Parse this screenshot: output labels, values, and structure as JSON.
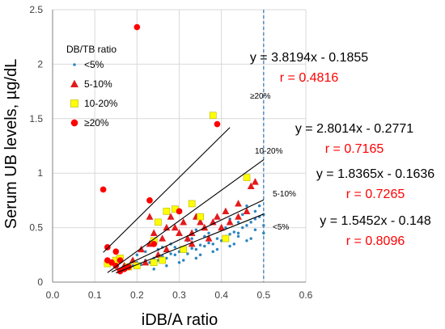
{
  "chart_data": {
    "type": "scatter",
    "xlabel": "iDB/A ratio",
    "ylabel": "Serum UB levels, µg/dL",
    "xlim": [
      0,
      0.6
    ],
    "ylim": [
      0,
      2.5
    ],
    "x_ticks": [
      "0.0",
      "0.1",
      "0.2",
      "0.3",
      "0.4",
      "0.5",
      "0.6"
    ],
    "y_ticks": [
      "0",
      "0.5",
      "1",
      "1.5",
      "2",
      "2.5"
    ],
    "reference_line": {
      "x": 0.5,
      "style": "dashed",
      "color": "#2e75b6"
    },
    "legend": {
      "title": "DB/TB ratio",
      "placement": "top-left"
    },
    "series": [
      {
        "name": "<5%",
        "marker": "dot",
        "color": "#2e86c1",
        "fit": {
          "equation": "y = 1.5452x - 0.148",
          "r_label": "r = 0.8096",
          "slope": 1.5452,
          "intercept": -0.148,
          "x_range": [
            0.15,
            0.5
          ],
          "curve_label": "<5%"
        },
        "points": [
          [
            0.16,
            0.1
          ],
          [
            0.17,
            0.12
          ],
          [
            0.18,
            0.13
          ],
          [
            0.19,
            0.15
          ],
          [
            0.2,
            0.18
          ],
          [
            0.21,
            0.16
          ],
          [
            0.22,
            0.2
          ],
          [
            0.23,
            0.18
          ],
          [
            0.24,
            0.22
          ],
          [
            0.25,
            0.2
          ],
          [
            0.26,
            0.24
          ],
          [
            0.27,
            0.22
          ],
          [
            0.28,
            0.26
          ],
          [
            0.29,
            0.25
          ],
          [
            0.3,
            0.28
          ],
          [
            0.31,
            0.3
          ],
          [
            0.32,
            0.26
          ],
          [
            0.33,
            0.31
          ],
          [
            0.34,
            0.3
          ],
          [
            0.35,
            0.34
          ],
          [
            0.36,
            0.33
          ],
          [
            0.37,
            0.36
          ],
          [
            0.38,
            0.35
          ],
          [
            0.39,
            0.4
          ],
          [
            0.4,
            0.38
          ],
          [
            0.41,
            0.42
          ],
          [
            0.42,
            0.44
          ],
          [
            0.43,
            0.46
          ],
          [
            0.44,
            0.45
          ],
          [
            0.45,
            0.5
          ],
          [
            0.46,
            0.52
          ],
          [
            0.47,
            0.55
          ],
          [
            0.48,
            0.58
          ],
          [
            0.49,
            0.6
          ],
          [
            0.5,
            0.62
          ],
          [
            0.25,
            0.3
          ],
          [
            0.27,
            0.15
          ],
          [
            0.29,
            0.32
          ],
          [
            0.31,
            0.2
          ],
          [
            0.33,
            0.4
          ],
          [
            0.35,
            0.25
          ],
          [
            0.37,
            0.45
          ],
          [
            0.39,
            0.3
          ],
          [
            0.41,
            0.5
          ],
          [
            0.43,
            0.35
          ],
          [
            0.45,
            0.62
          ],
          [
            0.47,
            0.4
          ],
          [
            0.49,
            0.7
          ],
          [
            0.28,
            0.35
          ],
          [
            0.32,
            0.38
          ],
          [
            0.36,
            0.42
          ],
          [
            0.4,
            0.48
          ],
          [
            0.44,
            0.55
          ],
          [
            0.48,
            0.65
          ],
          [
            0.3,
            0.18
          ],
          [
            0.34,
            0.22
          ],
          [
            0.38,
            0.28
          ],
          [
            0.42,
            0.33
          ],
          [
            0.46,
            0.38
          ],
          [
            0.5,
            0.45
          ],
          [
            0.22,
            0.28
          ],
          [
            0.26,
            0.32
          ],
          [
            0.34,
            0.48
          ],
          [
            0.42,
            0.58
          ],
          [
            0.46,
            0.7
          ],
          [
            0.24,
            0.12
          ],
          [
            0.2,
            0.25
          ],
          [
            0.5,
            0.52
          ],
          [
            0.48,
            0.48
          ],
          [
            0.44,
            0.42
          ]
        ]
      },
      {
        "name": "5-10%",
        "marker": "triangle",
        "color": "#e31a1c",
        "fit": {
          "equation": "y = 1.8365x - 0.1636",
          "r_label": "r = 0.7265",
          "slope": 1.8365,
          "intercept": -0.1636,
          "x_range": [
            0.14,
            0.5
          ],
          "curve_label": "5-10%"
        },
        "points": [
          [
            0.15,
            0.2
          ],
          [
            0.17,
            0.15
          ],
          [
            0.19,
            0.2
          ],
          [
            0.21,
            0.3
          ],
          [
            0.22,
            0.18
          ],
          [
            0.23,
            0.6
          ],
          [
            0.24,
            0.45
          ],
          [
            0.25,
            0.25
          ],
          [
            0.26,
            0.4
          ],
          [
            0.27,
            0.3
          ],
          [
            0.28,
            0.6
          ],
          [
            0.29,
            0.5
          ],
          [
            0.3,
            0.45
          ],
          [
            0.31,
            0.55
          ],
          [
            0.32,
            0.4
          ],
          [
            0.33,
            0.45
          ],
          [
            0.34,
            0.6
          ],
          [
            0.35,
            0.55
          ],
          [
            0.36,
            0.5
          ],
          [
            0.37,
            0.4
          ],
          [
            0.38,
            0.55
          ],
          [
            0.39,
            0.6
          ],
          [
            0.4,
            0.5
          ],
          [
            0.42,
            0.55
          ],
          [
            0.44,
            0.6
          ],
          [
            0.46,
            0.65
          ],
          [
            0.47,
            0.88
          ],
          [
            0.48,
            0.92
          ],
          [
            0.23,
            0.35
          ],
          [
            0.27,
            0.5
          ],
          [
            0.33,
            0.35
          ],
          [
            0.41,
            0.65
          ],
          [
            0.44,
            0.72
          ]
        ]
      },
      {
        "name": "10-20%",
        "marker": "square",
        "color": "#ffff00",
        "fit": {
          "equation": "y = 2.8014x - 0.2771",
          "r_label": "r = 0.7165",
          "slope": 2.8014,
          "intercept": -0.2771,
          "x_range": [
            0.13,
            0.5
          ],
          "curve_label": "10-20%"
        },
        "points": [
          [
            0.13,
            0.17
          ],
          [
            0.15,
            0.2
          ],
          [
            0.16,
            0.22
          ],
          [
            0.18,
            0.14
          ],
          [
            0.24,
            0.38
          ],
          [
            0.24,
            0.18
          ],
          [
            0.25,
            0.55
          ],
          [
            0.27,
            0.65
          ],
          [
            0.29,
            0.67
          ],
          [
            0.31,
            0.3
          ],
          [
            0.33,
            0.72
          ],
          [
            0.35,
            0.6
          ],
          [
            0.38,
            1.53
          ],
          [
            0.41,
            0.4
          ],
          [
            0.46,
            0.96
          ],
          [
            0.26,
            0.2
          ],
          [
            0.2,
            0.15
          ]
        ]
      },
      {
        "name": "≥20%",
        "marker": "circle",
        "color": "#ff0000",
        "fit": {
          "equation": "y = 3.8194x - 0.1855",
          "r_label": "r = 0.4816",
          "slope": 3.8194,
          "intercept": -0.1855,
          "x_range": [
            0.12,
            0.42
          ],
          "curve_label": "≥20%"
        },
        "points": [
          [
            0.12,
            0.85
          ],
          [
            0.2,
            2.34
          ],
          [
            0.39,
            1.45
          ],
          [
            0.23,
            0.75
          ],
          [
            0.13,
            0.32
          ],
          [
            0.13,
            0.2
          ],
          [
            0.15,
            0.15
          ],
          [
            0.16,
            0.2
          ],
          [
            0.17,
            0.12
          ],
          [
            0.16,
            0.1
          ],
          [
            0.18,
            0.14
          ],
          [
            0.24,
            0.35
          ],
          [
            0.3,
            0.65
          ],
          [
            0.15,
            0.28
          ],
          [
            0.14,
            0.18
          ]
        ]
      }
    ]
  }
}
